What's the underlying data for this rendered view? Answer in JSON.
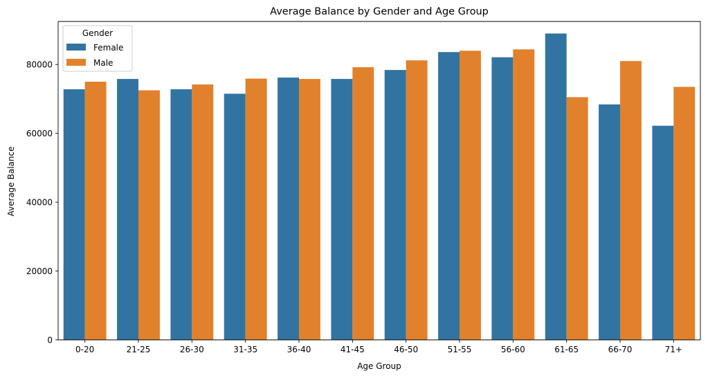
{
  "chart_data": {
    "type": "bar",
    "title": "Average Balance by Gender and Age Group",
    "xlabel": "Age Group",
    "ylabel": "Average Balance",
    "ylim": [
      0,
      92500
    ],
    "yticks": [
      0,
      20000,
      40000,
      60000,
      80000
    ],
    "grid": false,
    "categories": [
      "0-20",
      "21-25",
      "26-30",
      "31-35",
      "36-40",
      "41-45",
      "46-50",
      "51-55",
      "56-60",
      "61-65",
      "66-70",
      "71+"
    ],
    "series": [
      {
        "name": "Female",
        "color": "#3274a1",
        "values": [
          72800,
          75800,
          72800,
          71500,
          76200,
          75800,
          78400,
          83600,
          82100,
          89000,
          68400,
          62200
        ]
      },
      {
        "name": "Male",
        "color": "#e1812c",
        "values": [
          75000,
          72500,
          74200,
          75900,
          75800,
          79200,
          81200,
          84000,
          84400,
          70500,
          81000,
          73500
        ]
      }
    ],
    "legend": {
      "title": "Gender",
      "position": "upper left"
    }
  }
}
